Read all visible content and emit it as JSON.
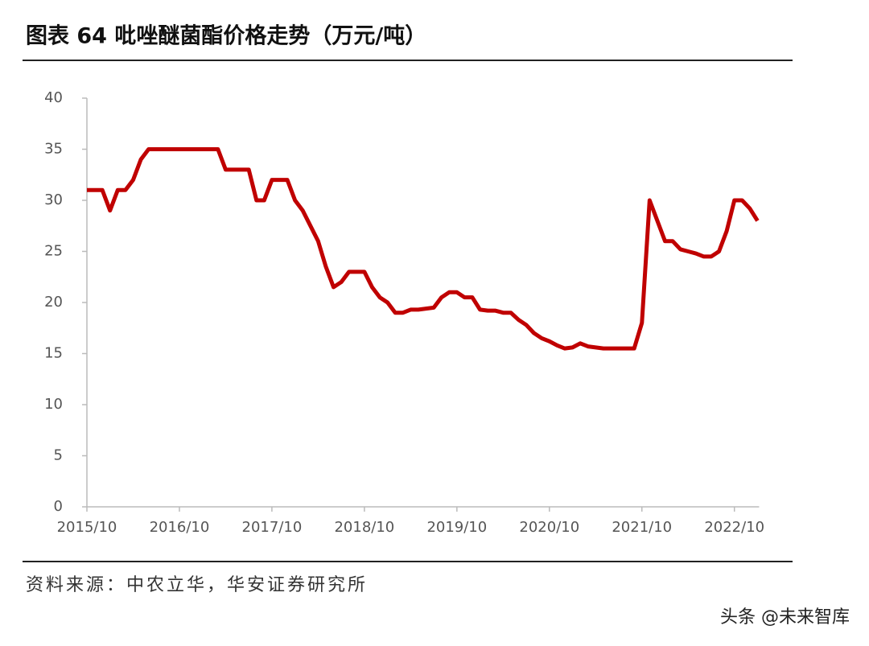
{
  "chart_data": {
    "type": "line",
    "title": "图表 64 吡唑醚菌酯价格走势（万元/吨）",
    "source": "资料来源：中农立华，华安证券研究所",
    "watermark": "头条 @未来智库",
    "x": [
      "2015/10",
      "2015/11",
      "2015/12",
      "2016/01",
      "2016/02",
      "2016/03",
      "2016/04",
      "2016/05",
      "2016/06",
      "2016/07",
      "2016/08",
      "2016/09",
      "2016/10",
      "2016/11",
      "2016/12",
      "2017/01",
      "2017/02",
      "2017/03",
      "2017/04",
      "2017/05",
      "2017/06",
      "2017/07",
      "2017/08",
      "2017/09",
      "2017/10",
      "2017/11",
      "2017/12",
      "2018/01",
      "2018/02",
      "2018/03",
      "2018/04",
      "2018/05",
      "2018/06",
      "2018/07",
      "2018/08",
      "2018/09",
      "2018/10",
      "2018/11",
      "2018/12",
      "2019/01",
      "2019/02",
      "2019/03",
      "2019/04",
      "2019/05",
      "2019/06",
      "2019/07",
      "2019/08",
      "2019/09",
      "2019/10",
      "2019/11",
      "2019/12",
      "2020/01",
      "2020/02",
      "2020/03",
      "2020/04",
      "2020/05",
      "2020/06",
      "2020/07",
      "2020/08",
      "2020/09",
      "2020/10",
      "2020/11",
      "2020/12",
      "2021/01",
      "2021/02",
      "2021/03",
      "2021/04",
      "2021/05",
      "2021/06",
      "2021/07",
      "2021/08",
      "2021/09",
      "2021/10",
      "2021/11",
      "2021/12",
      "2022/01",
      "2022/02",
      "2022/03",
      "2022/04",
      "2022/05",
      "2022/06",
      "2022/07",
      "2022/08",
      "2022/09",
      "2022/10",
      "2022/11",
      "2022/12",
      "2023/01"
    ],
    "series": [
      {
        "name": "吡唑醚菌酯",
        "color": "#c00000",
        "values": [
          31,
          31,
          31,
          29,
          31,
          31,
          32,
          34,
          35,
          35,
          35,
          35,
          35,
          35,
          35,
          35,
          35,
          35,
          33,
          33,
          33,
          33,
          30,
          30,
          32,
          32,
          32,
          30,
          29,
          27.5,
          26,
          23.5,
          21.5,
          22,
          23,
          23,
          23,
          21.5,
          20.5,
          20,
          19,
          19,
          19.3,
          19.3,
          19.4,
          19.5,
          20.5,
          21,
          21,
          20.5,
          20.5,
          19.3,
          19.2,
          19.2,
          19,
          19,
          18.3,
          17.8,
          17,
          16.5,
          16.2,
          15.8,
          15.5,
          15.6,
          16,
          15.7,
          15.6,
          15.5,
          15.5,
          15.5,
          15.5,
          15.5,
          18,
          30,
          28,
          26,
          26,
          25.2,
          25,
          24.8,
          24.5,
          24.5,
          25,
          27,
          30,
          30,
          29.2,
          28
        ]
      }
    ],
    "xticks": [
      "2015/10",
      "2016/10",
      "2017/10",
      "2018/10",
      "2019/10",
      "2020/10",
      "2021/10",
      "2022/10"
    ],
    "ylim": [
      0,
      40
    ],
    "yticks": [
      0,
      5,
      10,
      15,
      20,
      25,
      30,
      35,
      40
    ],
    "grid": false
  }
}
